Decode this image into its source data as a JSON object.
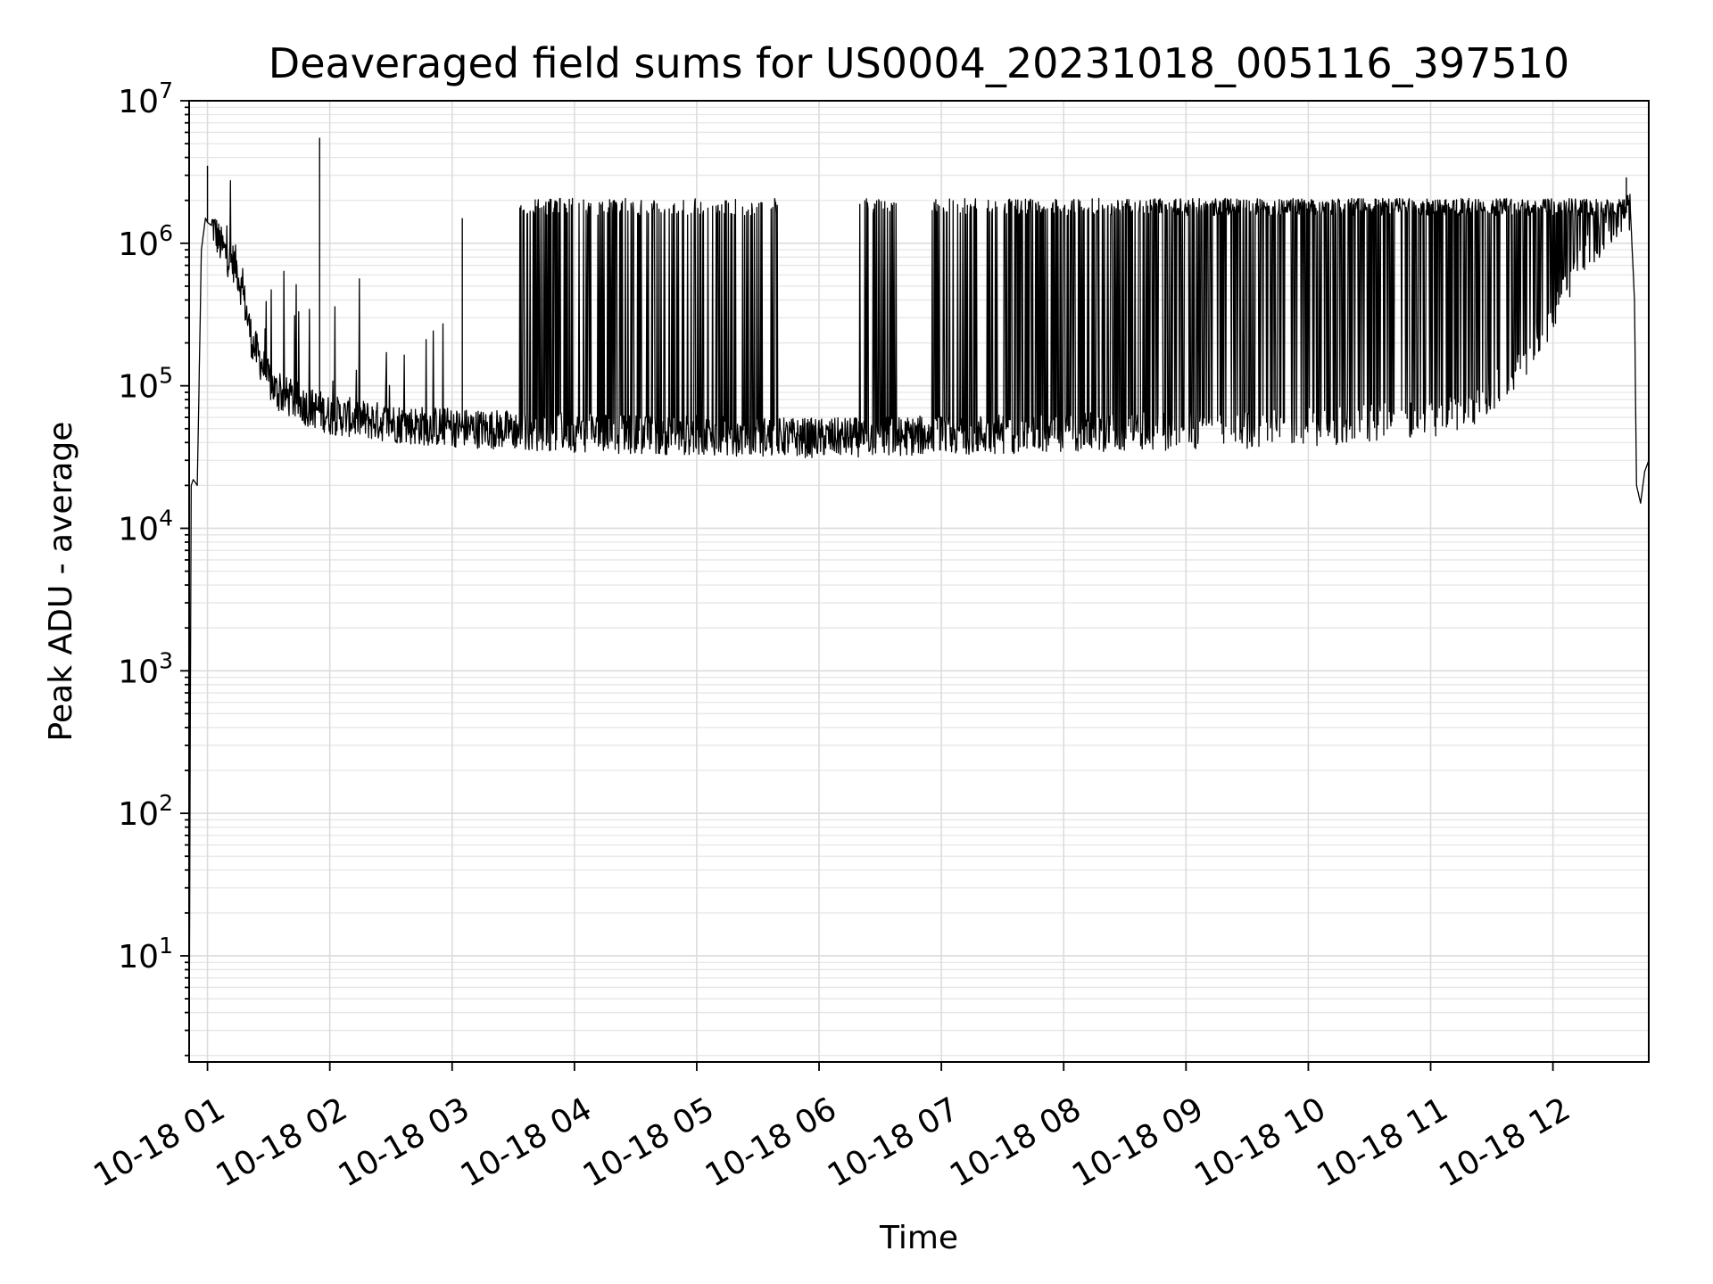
{
  "chart_data": {
    "type": "line",
    "title": "Deaveraged field sums for US0004_20231018_005116_397510",
    "xlabel": "Time",
    "ylabel": "Peak ADU - average",
    "yscale": "log",
    "ylim": [
      1.8,
      10000000
    ],
    "xlim": [
      "10-18 00:51",
      "10-18 12:47"
    ],
    "grid": true,
    "x_tick_labels": [
      "10-18 01",
      "10-18 02",
      "10-18 03",
      "10-18 04",
      "10-18 05",
      "10-18 06",
      "10-18 07",
      "10-18 08",
      "10-18 09",
      "10-18 10",
      "10-18 11",
      "10-18 12"
    ],
    "y_tick_labels": [
      {
        "base": "10",
        "exp": "1",
        "value": 10
      },
      {
        "base": "10",
        "exp": "2",
        "value": 100
      },
      {
        "base": "10",
        "exp": "3",
        "value": 1000
      },
      {
        "base": "10",
        "exp": "4",
        "value": 10000
      },
      {
        "base": "10",
        "exp": "5",
        "value": 100000
      },
      {
        "base": "10",
        "exp": "6",
        "value": 1000000
      },
      {
        "base": "10",
        "exp": "7",
        "value": 10000000
      }
    ],
    "series": [
      {
        "color": "#000000",
        "x": [
          "10-18 00:51",
          "10-18 00:52",
          "10-18 00:53",
          "10-18 00:55",
          "10-18 00:57",
          "10-18 00:59",
          "10-18 01:00",
          "10-18 01:03",
          "10-18 01:06",
          "10-18 01:10",
          "10-18 01:14",
          "10-18 01:18",
          "10-18 01:22",
          "10-18 01:26",
          "10-18 01:30",
          "10-18 01:34",
          "10-18 01:38",
          "10-18 01:42",
          "10-18 01:46",
          "10-18 01:50",
          "10-18 01:55",
          "10-18 01:57",
          "10-18 02:00",
          "10-18 02:10",
          "10-18 02:20",
          "10-18 02:30",
          "10-18 02:40",
          "10-18 02:50",
          "10-18 03:00",
          "10-18 03:15",
          "10-18 03:30",
          "10-18 03:45",
          "10-18 04:00",
          "10-18 04:20",
          "10-18 04:40",
          "10-18 05:00",
          "10-18 05:30",
          "10-18 06:00",
          "10-18 06:30",
          "10-18 07:00",
          "10-18 07:30",
          "10-18 08:00",
          "10-18 08:30",
          "10-18 09:00",
          "10-18 09:30",
          "10-18 10:00",
          "10-18 10:30",
          "10-18 11:00",
          "10-18 11:20",
          "10-18 11:35",
          "10-18 11:45",
          "10-18 12:00",
          "10-18 12:10",
          "10-18 12:20",
          "10-18 12:30",
          "10-18 12:35",
          "10-18 12:38",
          "10-18 12:40",
          "10-18 12:41",
          "10-18 12:43",
          "10-18 12:45",
          "10-18 12:47"
        ],
        "y": [
          2,
          20000,
          22000,
          20000,
          900000,
          1500000,
          1400000,
          1300000,
          1000000,
          800000,
          700000,
          400000,
          200000,
          150000,
          110000,
          90000,
          85000,
          80000,
          75000,
          70000,
          68000,
          65000,
          62000,
          60000,
          57000,
          55000,
          53000,
          52000,
          51000,
          50000,
          49000,
          48000,
          47000,
          46000,
          45000,
          45000,
          44000,
          43000,
          44000,
          45000,
          46000,
          47000,
          48000,
          49000,
          50000,
          52000,
          55000,
          60000,
          70000,
          100000,
          150000,
          300000,
          600000,
          1000000,
          1300000,
          1600000,
          1700000,
          400000,
          20000,
          15000,
          25000,
          30000
        ]
      }
    ],
    "spikes": [
      {
        "x": "10-18 01:00",
        "y": 3500000
      },
      {
        "x": "10-18 01:55",
        "y": 5500000
      },
      {
        "x": "10-18 03:05",
        "y": 1500000
      },
      {
        "x": "10-18 12:36",
        "y": 2900000
      }
    ],
    "envelope": {
      "description_free": true,
      "upper_level": 1800000,
      "lower_level": 45000,
      "burst_ranges": [
        [
          "10-18 03:30",
          "10-18 05:40"
        ],
        [
          "10-18 06:20",
          "10-18 06:40"
        ],
        [
          "10-18 06:55",
          "10-18 07:25"
        ],
        [
          "10-18 07:25",
          "10-18 12:35"
        ]
      ]
    }
  }
}
